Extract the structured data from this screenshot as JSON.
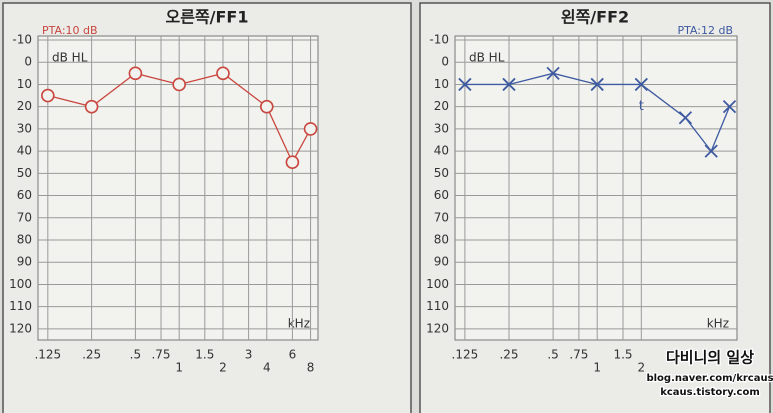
{
  "chart_data": [
    {
      "type": "line",
      "title": "오른쪽/FF1",
      "pta_label": "PTA:10 dB",
      "pta_position": "top-left",
      "y_label": "dB HL",
      "x_label": "kHz",
      "x": [
        0.125,
        0.25,
        0.5,
        1,
        2,
        4,
        6,
        8
      ],
      "values": [
        15,
        20,
        5,
        10,
        5,
        20,
        45,
        30
      ],
      "color": "#c9473f",
      "marker": "circle",
      "x_scale": "log",
      "y_inverted": true,
      "grid": true,
      "xlim": [
        0.107,
        9
      ],
      "ylim": [
        -10,
        125
      ],
      "xticks": [
        {
          "value": 0.125,
          "label": ".125"
        },
        {
          "value": 0.25,
          "label": ".25"
        },
        {
          "value": 0.5,
          "label": ".5"
        },
        {
          "value": 0.75,
          "label": ".75"
        },
        1,
        1.5,
        2,
        3,
        4,
        6,
        8
      ],
      "yticks": [
        -10,
        0,
        10,
        20,
        30,
        40,
        50,
        60,
        70,
        80,
        90,
        100,
        110,
        120
      ],
      "annotations": []
    },
    {
      "type": "line",
      "title": "왼쪽/FF2",
      "pta_label": "PTA:12 dB",
      "pta_position": "top-right",
      "y_label": "dB HL",
      "x_label": "kHz",
      "x": [
        0.125,
        0.25,
        0.5,
        1,
        2,
        4,
        6,
        8
      ],
      "values": [
        10,
        10,
        5,
        10,
        10,
        25,
        40,
        20
      ],
      "color": "#3e5aa0",
      "marker": "x",
      "x_scale": "log",
      "y_inverted": true,
      "grid": true,
      "xlim": [
        0.107,
        9
      ],
      "ylim": [
        -10,
        125
      ],
      "xticks": [
        {
          "value": 0.125,
          "label": ".125"
        },
        {
          "value": 0.25,
          "label": ".25"
        },
        {
          "value": 0.5,
          "label": ".5"
        },
        {
          "value": 0.75,
          "label": ".75"
        },
        1,
        1.5,
        2
      ],
      "yticks": [
        -10,
        0,
        10,
        20,
        30,
        40,
        50,
        60,
        70,
        80,
        90,
        100,
        110,
        120
      ],
      "annotations": [
        {
          "text": "t",
          "x": 2
        }
      ]
    }
  ],
  "watermark": {
    "name": "다비니의 일상",
    "line1": "blog.naver.com/krcaus",
    "line2": "kcaus.tistory.com"
  }
}
